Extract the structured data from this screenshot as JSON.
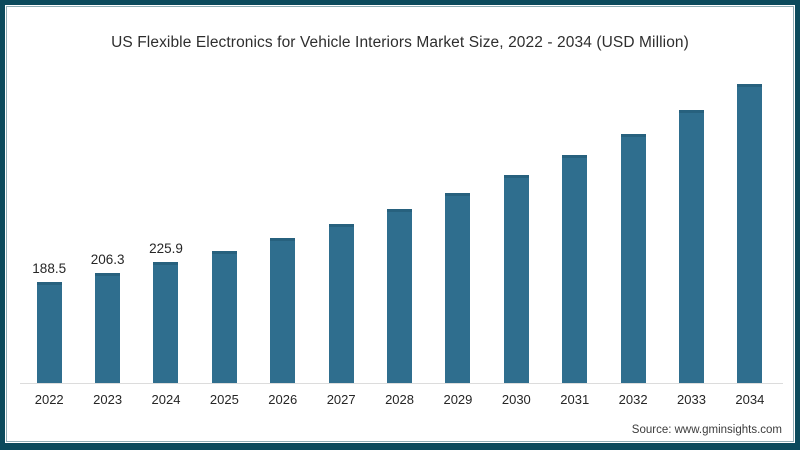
{
  "source": {
    "label": "Source: www.gminsights.com"
  },
  "colors": {
    "bar": "#2f6e8e",
    "bar_top_edge": "#27617e",
    "frame": "#0c4a5c",
    "axis": "#dcdcdc",
    "title_text": "#2e2e2e",
    "label_text": "#262626"
  },
  "chart_data": {
    "type": "bar",
    "title": "US Flexible Electronics for Vehicle Interiors Market Size, 2022 - 2034 (USD Million)",
    "categories": [
      "2022",
      "2023",
      "2024",
      "2025",
      "2026",
      "2027",
      "2028",
      "2029",
      "2030",
      "2031",
      "2032",
      "2033",
      "2034"
    ],
    "values": [
      188.5,
      206.3,
      225.9,
      247.2,
      270.6,
      296.2,
      324.2,
      354.8,
      388.4,
      425.1,
      465.3,
      509.2,
      557.4
    ],
    "data_labels": [
      "188.5",
      "206.3",
      "225.9",
      null,
      null,
      null,
      null,
      null,
      null,
      null,
      null,
      null,
      null
    ],
    "xlabel": "",
    "ylabel": "",
    "ylim": [
      0,
      600
    ],
    "grid": false,
    "legend": false,
    "bar_color": "#2f6e8e"
  }
}
